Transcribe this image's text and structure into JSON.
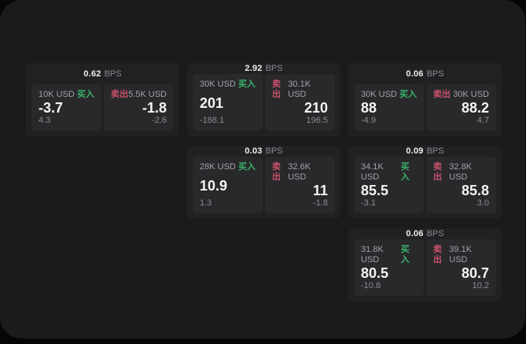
{
  "page": {
    "panel_bg": "#1b1b1d",
    "card_bg": "#212124",
    "tile_bg": "#29292c",
    "buy_color": "#38b469",
    "sell_color": "#c9516b",
    "bps_unit": "BPS",
    "buy_label": "买入",
    "sell_label": "卖出"
  },
  "cards": [
    {
      "bps": "0.62",
      "col": 1,
      "row": 1,
      "buy": {
        "notional": "10K USD",
        "price": "-3.7",
        "delta": "4.3"
      },
      "sell": {
        "notional": "5.5K USD",
        "price": "-1.8",
        "delta": "-2.6"
      }
    },
    {
      "bps": "2.92",
      "col": 2,
      "row": 1,
      "buy": {
        "notional": "30K USD",
        "price": "201",
        "delta": "-188.1"
      },
      "sell": {
        "notional": "30.1K USD",
        "price": "210",
        "delta": "196.5"
      }
    },
    {
      "bps": "0.06",
      "col": 3,
      "row": 1,
      "buy": {
        "notional": "30K USD",
        "price": "88",
        "delta": "-4.9"
      },
      "sell": {
        "notional": "30K USD",
        "price": "88.2",
        "delta": "4.7"
      }
    },
    {
      "bps": "0.03",
      "col": 2,
      "row": 2,
      "buy": {
        "notional": "28K USD",
        "price": "10.9",
        "delta": "1.3"
      },
      "sell": {
        "notional": "32.6K USD",
        "price": "11",
        "delta": "-1.8"
      }
    },
    {
      "bps": "0.09",
      "col": 3,
      "row": 2,
      "buy": {
        "notional": "34.1K USD",
        "price": "85.5",
        "delta": "-3.1"
      },
      "sell": {
        "notional": "32.8K USD",
        "price": "85.8",
        "delta": "3.0"
      }
    },
    {
      "bps": "0.06",
      "col": 3,
      "row": 3,
      "buy": {
        "notional": "31.8K USD",
        "price": "80.5",
        "delta": "-10.8"
      },
      "sell": {
        "notional": "39.1K USD",
        "price": "80.7",
        "delta": "10.2"
      }
    }
  ]
}
